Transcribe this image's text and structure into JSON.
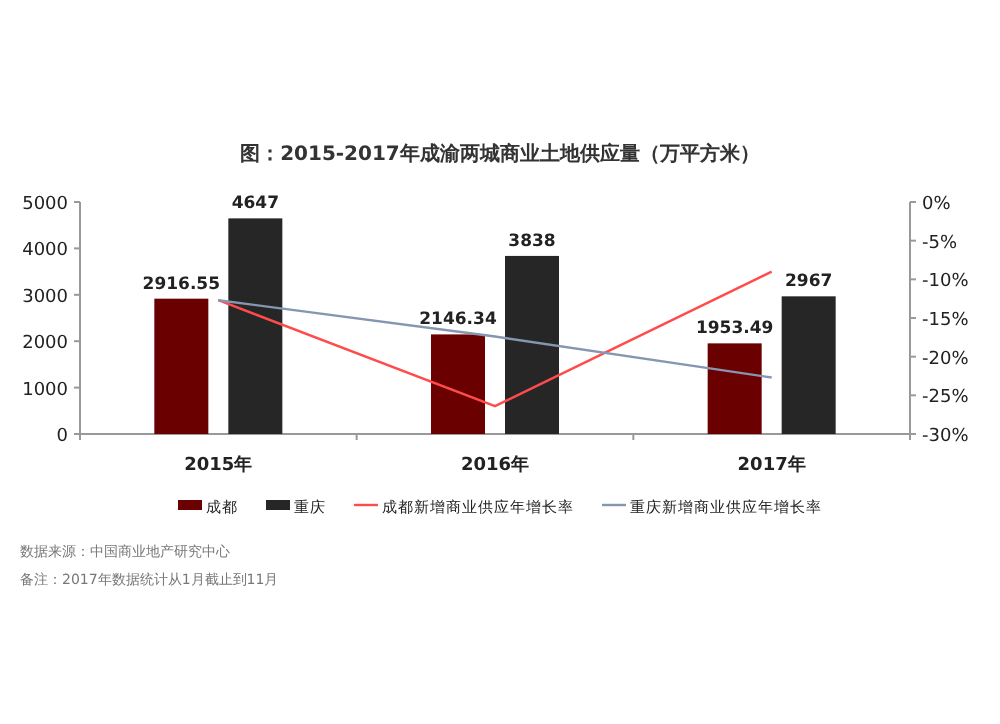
{
  "chart_data": {
    "type": "bar",
    "title": "图：2015-2017年成渝两城商业土地供应量（万平方米）",
    "categories": [
      "2015年",
      "2016年",
      "2017年"
    ],
    "series": [
      {
        "name": "成都",
        "color": "#6b0000",
        "values": [
          2916.55,
          2146.34,
          1953.49
        ],
        "value_labels": [
          "2916.55",
          "2146.34",
          "1953.49"
        ]
      },
      {
        "name": "重庆",
        "color": "#262626",
        "values": [
          4647,
          3838,
          2967
        ],
        "value_labels": [
          "4647",
          "3838",
          "2967"
        ]
      },
      {
        "name": "成都新增商业供应年增长率",
        "type": "line",
        "axis": "y2",
        "color": "#ff4b4b",
        "values": [
          -12.7,
          -26.4,
          -9.0
        ]
      },
      {
        "name": "重庆新增商业供应年增长率",
        "type": "line",
        "axis": "y2",
        "color": "#8496b0",
        "values": [
          -12.7,
          -17.4,
          -22.7
        ]
      }
    ],
    "ylim": [
      0,
      5000
    ],
    "yticks": [
      0,
      1000,
      2000,
      3000,
      4000,
      5000
    ],
    "y2lim": [
      -30,
      0
    ],
    "y2ticks": [
      {
        "value": 0,
        "label": "0%"
      },
      {
        "value": -5,
        "label": "-5%"
      },
      {
        "value": -10,
        "label": "-10%"
      },
      {
        "value": -15,
        "label": "-15%"
      },
      {
        "value": -20,
        "label": "-20%"
      },
      {
        "value": -25,
        "label": "-25%"
      },
      {
        "value": -30,
        "label": "-30%"
      }
    ],
    "legend": "bottom",
    "grid": false,
    "annotations": [
      "数据来源：中国商业地产研究中心",
      "备注：2017年数据统计从1月截止到11月"
    ]
  }
}
